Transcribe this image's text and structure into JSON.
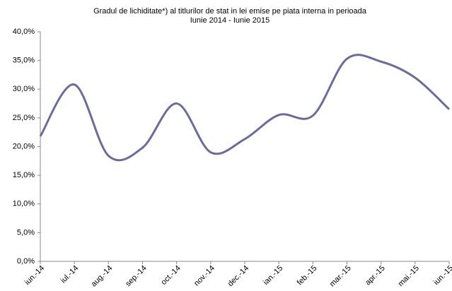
{
  "chart_data": {
    "type": "line",
    "title": "Gradul de lichiditate*) al titlurilor de stat in lei emise pe piata interna  in perioada",
    "subtitle": "Iunie 2014 - Iunie 2015",
    "categories": [
      "iun.-14",
      "iul.-14",
      "aug.-14",
      "sep.-14",
      "oct.-14",
      "nov.-14",
      "dec.-14",
      "ian.-15",
      "feb.-15",
      "mar.-15",
      "apr.-15",
      "mai.-15",
      "iun.-15"
    ],
    "series": [
      {
        "name": "Gradul de lichiditate",
        "color": "#6b6b9e",
        "values": [
          21.8,
          30.8,
          18.4,
          19.8,
          27.5,
          19.0,
          21.3,
          25.5,
          25.4,
          35.3,
          34.8,
          32.0,
          26.5
        ]
      }
    ],
    "ylim": [
      0,
      40
    ],
    "yticks": [
      {
        "value": 0,
        "label": "0,0%"
      },
      {
        "value": 5,
        "label": "5,0%"
      },
      {
        "value": 10,
        "label": "10,0%"
      },
      {
        "value": 15,
        "label": "15,0%"
      },
      {
        "value": 20,
        "label": "20,0%"
      },
      {
        "value": 25,
        "label": "25,0%"
      },
      {
        "value": 30,
        "label": "30,0%"
      },
      {
        "value": 35,
        "label": "35,0%"
      },
      {
        "value": 40,
        "label": "40,0%"
      }
    ],
    "smooth": true
  }
}
